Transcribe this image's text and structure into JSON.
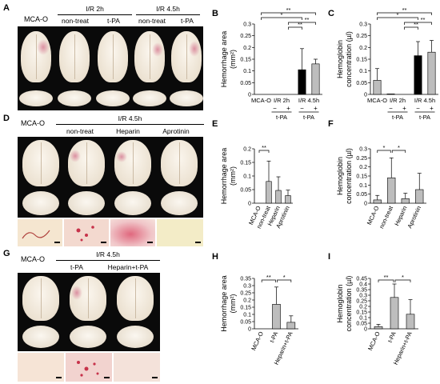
{
  "panels": {
    "A": {
      "letter": "A",
      "left_label": "MCA-O",
      "group1": "I/R 2h",
      "group2": "I/R 4.5h",
      "cols": [
        "non-treat",
        "t-PA",
        "non-treat",
        "t-PA"
      ]
    },
    "D": {
      "letter": "D",
      "left_label": "MCA-O",
      "group": "I/R 4.5h",
      "cols": [
        "non-treat",
        "Heparin",
        "Aprotinin"
      ]
    },
    "G": {
      "letter": "G",
      "left_label": "MCA-O",
      "group": "I/R 4.5h",
      "cols": [
        "t-PA",
        "Heparin+t-PA"
      ]
    }
  },
  "chart_data": [
    {
      "letter": "B",
      "type": "bar",
      "ylabel": "Hemorrhage area\n(mm²)",
      "ylim": [
        0,
        0.3
      ],
      "yticks": [
        "0",
        "0.05",
        "0.1",
        "0.15",
        "0.2",
        "0.25",
        "0.3"
      ],
      "categories": [
        "MCA-O",
        "I/R 2h -",
        "I/R 2h +",
        "I/R 4.5h -",
        "I/R 4.5h +"
      ],
      "values": [
        0,
        0,
        0,
        0.105,
        0.13
      ],
      "errors": [
        0,
        0,
        0,
        0.09,
        0.02
      ],
      "bar_colors": [
        "#bdbdbd",
        "#bdbdbd",
        "#bdbdbd",
        "#000000",
        "#bdbdbd"
      ],
      "xtext": {
        "a": "MCA-O",
        "b": "I/R 2h",
        "c": "I/R 4.5h",
        "minus": "−",
        "plus": "+",
        "tpa": "t-PA"
      },
      "sig": [
        "**",
        "*",
        "**",
        "**"
      ]
    },
    {
      "letter": "C",
      "type": "bar",
      "ylabel": "Hemoglobin\nconcentration (µl)",
      "ylim": [
        0,
        0.3
      ],
      "yticks": [
        "0",
        "0.05",
        "0.1",
        "0.15",
        "0.2",
        "0.25",
        "0.3"
      ],
      "categories": [
        "MCA-O",
        "I/R 2h -",
        "I/R 2h +",
        "I/R 4.5h -",
        "I/R 4.5h +"
      ],
      "values": [
        0.06,
        0.002,
        0,
        0.165,
        0.18
      ],
      "errors": [
        0.05,
        0,
        0,
        0.06,
        0.05
      ],
      "bar_colors": [
        "#bdbdbd",
        "#bdbdbd",
        "#bdbdbd",
        "#000000",
        "#bdbdbd"
      ],
      "xtext": {
        "a": "MCA-O",
        "b": "I/R 2h",
        "c": "I/R 4.5h",
        "minus": "−",
        "plus": "+",
        "tpa": "t-PA"
      },
      "sig": [
        "**",
        "*",
        "**",
        "**"
      ]
    },
    {
      "letter": "E",
      "type": "bar",
      "ylabel": "Hemorrhage area\n(mm²)",
      "ylim": [
        0,
        0.2
      ],
      "yticks": [
        "0",
        "0.05",
        "0.1",
        "0.15",
        "0.2"
      ],
      "categories": [
        "MCA-O",
        "non-treat",
        "Heparin",
        "Aprotinin"
      ],
      "values": [
        0,
        0.08,
        0.047,
        0.028
      ],
      "errors": [
        0,
        0.075,
        0.05,
        0.02
      ],
      "bar_colors": [
        "#bdbdbd",
        "#bdbdbd",
        "#bdbdbd",
        "#bdbdbd"
      ],
      "sig": [
        "**"
      ]
    },
    {
      "letter": "F",
      "type": "bar",
      "ylabel": "Hemoglobin\nconcentration (µl)",
      "ylim": [
        0,
        0.3
      ],
      "yticks": [
        "0",
        "0.05",
        "0.1",
        "0.15",
        "0.2",
        "0.25",
        "0.3"
      ],
      "categories": [
        "MCA-O",
        "non-treat",
        "Heparin",
        "Aprotinin"
      ],
      "values": [
        0.018,
        0.14,
        0.025,
        0.075
      ],
      "errors": [
        0.025,
        0.11,
        0.03,
        0.09
      ],
      "bar_colors": [
        "#bdbdbd",
        "#bdbdbd",
        "#bdbdbd",
        "#bdbdbd"
      ],
      "sig": [
        "*",
        "*"
      ]
    },
    {
      "letter": "H",
      "type": "bar",
      "ylabel": "Hemorrhage area\n(mm²)",
      "ylim": [
        0,
        0.35
      ],
      "yticks": [
        "0",
        "0.05",
        "0.1",
        "0.15",
        "0.2",
        "0.25",
        "0.3",
        "0.35"
      ],
      "categories": [
        "MCA-O",
        "t-PA",
        "Heparin+t-PA"
      ],
      "values": [
        0,
        0.17,
        0.045
      ],
      "errors": [
        0,
        0.12,
        0.045
      ],
      "bar_colors": [
        "#bdbdbd",
        "#bdbdbd",
        "#bdbdbd"
      ],
      "sig": [
        "**",
        "*"
      ]
    },
    {
      "letter": "I",
      "type": "bar",
      "ylabel": "Hemoglobin\nconcentration (µl)",
      "ylim": [
        0,
        0.45
      ],
      "yticks": [
        "0",
        "0.05",
        "0.1",
        "0.15",
        "0.2",
        "0.25",
        "0.3",
        "0.35",
        "0.4",
        "0.45"
      ],
      "categories": [
        "MCA-O",
        "t-PA",
        "Heparin+t-PA"
      ],
      "values": [
        0.02,
        0.28,
        0.13
      ],
      "errors": [
        0.02,
        0.12,
        0.13
      ],
      "bar_colors": [
        "#bdbdbd",
        "#bdbdbd",
        "#bdbdbd"
      ],
      "sig": [
        "**",
        "*"
      ]
    }
  ]
}
